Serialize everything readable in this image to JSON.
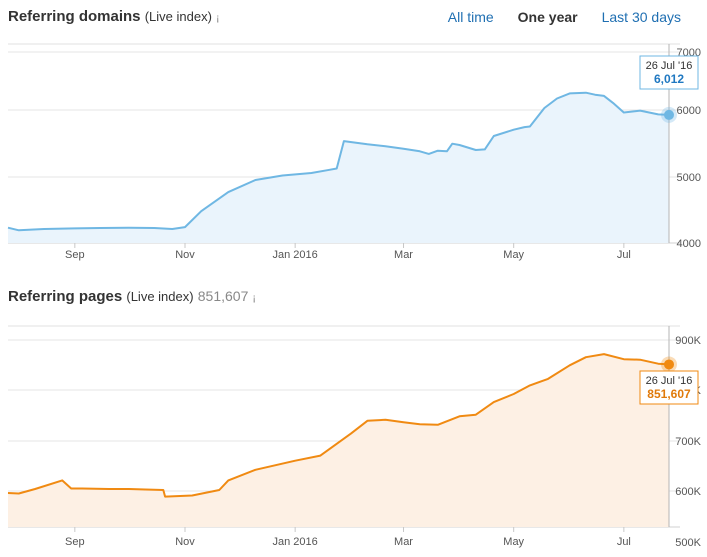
{
  "header": {
    "title": "Referring domains",
    "subtitle": "(Live index)",
    "info_mark": "¡",
    "timeframes": [
      {
        "label": "All time",
        "active": false
      },
      {
        "label": "One year",
        "active": true
      },
      {
        "label": "Last 30 days",
        "active": false
      }
    ]
  },
  "section2": {
    "title": "Referring pages",
    "subtitle": "(Live index)",
    "value": "851,607",
    "info_mark": "¡"
  },
  "colors": {
    "blue_line": "#6fb7e3",
    "blue_fill": "#eaf4fc",
    "blue_text": "#1f78c1",
    "orange_line": "#f08a12",
    "orange_fill": "#fdf0e4",
    "orange_text": "#e07a0a"
  },
  "chart_data": [
    {
      "type": "area",
      "title": "Referring domains",
      "x_ticks": [
        "Sep",
        "Nov",
        "Jan 2016",
        "Mar",
        "May",
        "Jul"
      ],
      "y_ticks": [
        "4000",
        "5000",
        "6000",
        "7000"
      ],
      "ylim": [
        4000,
        7000
      ],
      "x": [
        "2015-07-26",
        "2015-08-01",
        "2015-08-15",
        "2015-09-01",
        "2015-09-15",
        "2015-10-01",
        "2015-10-15",
        "2015-10-25",
        "2015-11-01",
        "2015-11-10",
        "2015-11-25",
        "2015-12-10",
        "2015-12-25",
        "2016-01-10",
        "2016-01-20",
        "2016-01-24",
        "2016-01-28",
        "2016-02-10",
        "2016-02-20",
        "2016-03-01",
        "2016-03-10",
        "2016-03-15",
        "2016-03-20",
        "2016-03-25",
        "2016-03-28",
        "2016-04-01",
        "2016-04-10",
        "2016-04-15",
        "2016-04-20",
        "2016-05-01",
        "2016-05-07",
        "2016-05-10",
        "2016-05-18",
        "2016-05-25",
        "2016-06-01",
        "2016-06-10",
        "2016-06-15",
        "2016-06-20",
        "2016-06-25",
        "2016-07-01",
        "2016-07-10",
        "2016-07-20",
        "2016-07-26"
      ],
      "series": [
        {
          "values": [
            4240,
            4200,
            4220,
            4230,
            4235,
            4240,
            4235,
            4220,
            4250,
            4500,
            4800,
            4990,
            5060,
            5100,
            5150,
            5170,
            5600,
            5550,
            5520,
            5480,
            5440,
            5400,
            5450,
            5440,
            5560,
            5540,
            5460,
            5470,
            5680,
            5780,
            5820,
            5830,
            6120,
            6270,
            6350,
            6360,
            6330,
            6310,
            6200,
            6050,
            6080,
            6020,
            6012
          ]
        }
      ],
      "tooltip": {
        "date": "26 Jul '16",
        "value": "6,012"
      }
    },
    {
      "type": "area",
      "title": "Referring pages",
      "x_ticks": [
        "Sep",
        "Nov",
        "Jan 2016",
        "Mar",
        "May",
        "Jul"
      ],
      "y_ticks": [
        "500K",
        "600K",
        "700K",
        "800K",
        "900K"
      ],
      "ylim": [
        500000,
        900000
      ],
      "x": [
        "2015-07-26",
        "2015-08-01",
        "2015-08-10",
        "2015-08-25",
        "2015-08-30",
        "2015-09-05",
        "2015-09-20",
        "2015-10-01",
        "2015-10-10",
        "2015-10-20",
        "2015-10-21",
        "2015-11-05",
        "2015-11-20",
        "2015-11-25",
        "2015-12-10",
        "2016-01-01",
        "2016-01-15",
        "2016-02-01",
        "2016-02-10",
        "2016-02-20",
        "2016-03-01",
        "2016-03-10",
        "2016-03-20",
        "2016-04-01",
        "2016-04-10",
        "2016-04-20",
        "2016-05-01",
        "2016-05-10",
        "2016-05-20",
        "2016-06-01",
        "2016-06-10",
        "2016-06-20",
        "2016-07-01",
        "2016-07-10",
        "2016-07-20",
        "2016-07-26"
      ],
      "series": [
        {
          "values": [
            597000,
            596000,
            605000,
            622000,
            606000,
            606000,
            605000,
            605000,
            604000,
            603000,
            590000,
            592000,
            603000,
            622000,
            643000,
            661000,
            671000,
            715000,
            740000,
            742000,
            737000,
            733000,
            732000,
            749000,
            752000,
            777000,
            793000,
            810000,
            823000,
            850000,
            866000,
            872000,
            862000,
            861000,
            853000,
            851607
          ]
        }
      ],
      "tooltip": {
        "date": "26 Jul '16",
        "value": "851,607"
      }
    }
  ]
}
